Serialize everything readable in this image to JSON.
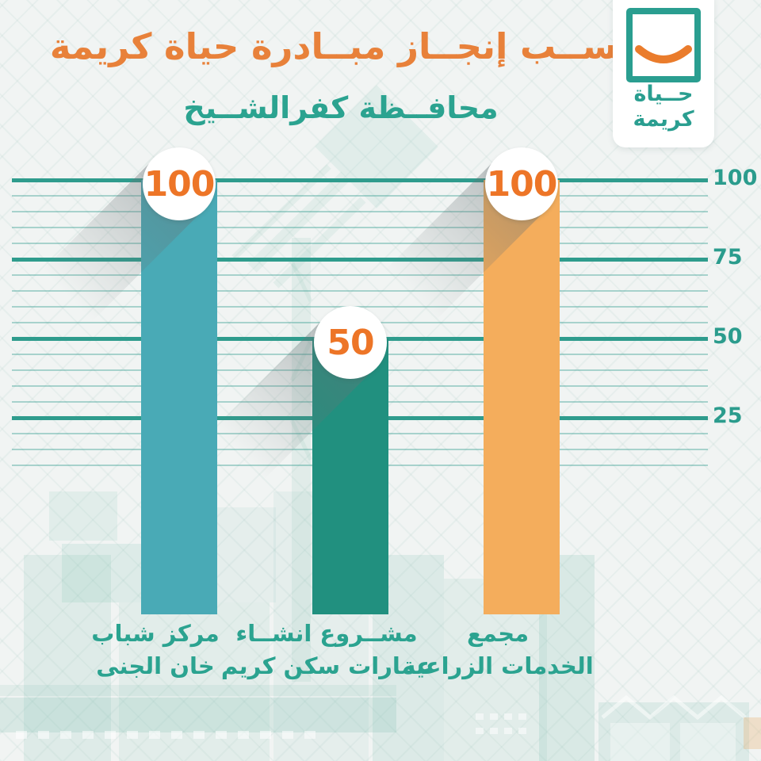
{
  "title": "نســب إنجــاز مبــادرة حياة كريمة",
  "subtitle": "محافــظة كفرالشــيخ",
  "logo": {
    "name": "hayah-karima-logo",
    "line1": "حــياة",
    "line2": "كريمة"
  },
  "colors": {
    "accent_orange": "#e8813a",
    "badge_number_orange": "#ed7527",
    "teal_text": "#2ba390",
    "grid_major": "#2f9c8d",
    "grid_minor": "rgba(47,156,141,0.38)",
    "bar_agriculture": "#f4ad5c",
    "bar_housing": "#21907f",
    "bar_youth": "#49aab6",
    "badge_bg": "#ffffff",
    "logo_teal": "#2a9e90",
    "background": "#f1f4f3"
  },
  "chart_data": {
    "type": "bar",
    "direction": "rtl",
    "title": "نســب إنجــاز مبــادرة حياة كريمة",
    "subtitle": "محافــظة كفرالشــيخ",
    "categories": [
      "مجمع الخدمات الزراعية",
      "مشروع انشاء عمارات سكن كريم",
      "مركز شباب خان الجنى"
    ],
    "values": [
      100,
      50,
      100
    ],
    "ylim": [
      0,
      100
    ],
    "yticks": [
      100,
      75,
      50,
      25
    ],
    "minor_tick_step": 5,
    "grid": "on",
    "axis_side": "right",
    "bars": [
      {
        "label_line1": "مجمع",
        "label_line2": "الخدمات الزراعية",
        "value": 100,
        "badge": "100",
        "color": "#f4ad5c"
      },
      {
        "label_line1": "مشــروع انشــاء",
        "label_line2": "عمارات سكن كريم",
        "value": 50,
        "badge": "50",
        "color": "#21907f"
      },
      {
        "label_line1": "مركز شباب",
        "label_line2": "خان الجنى",
        "value": 100,
        "badge": "100",
        "color": "#49aab6"
      }
    ]
  }
}
